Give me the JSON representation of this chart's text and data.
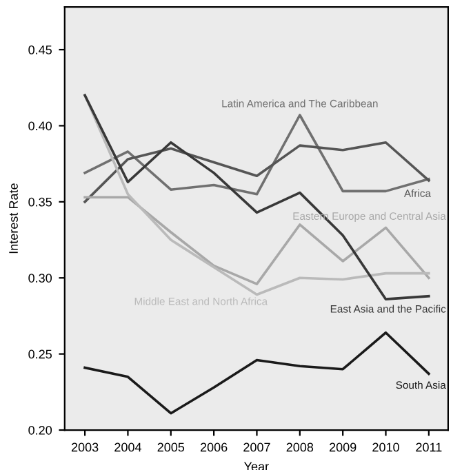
{
  "chart_data": {
    "type": "line",
    "xlabel": "Year",
    "ylabel": "Interest Rate",
    "x": [
      2003,
      2004,
      2005,
      2006,
      2007,
      2008,
      2009,
      2010,
      2011
    ],
    "xlim": [
      2002.53,
      2011.45
    ],
    "xticks": [
      2003,
      2004,
      2005,
      2006,
      2007,
      2008,
      2009,
      2010,
      2011
    ],
    "ylim": [
      0.2,
      0.478
    ],
    "yticks": [
      {
        "value": 0.2,
        "label": "0.20"
      },
      {
        "value": 0.25,
        "label": "0.25"
      },
      {
        "value": 0.3,
        "label": "0.30"
      },
      {
        "value": 0.35,
        "label": "0.35"
      },
      {
        "value": 0.4,
        "label": "0.40"
      },
      {
        "value": 0.45,
        "label": "0.45"
      }
    ],
    "grid": false,
    "legend": false,
    "marker": "none",
    "line_style": "solid",
    "series": [
      {
        "name": "Latin America and The Caribbean",
        "color": "#707070",
        "values": [
          0.369,
          0.383,
          0.358,
          0.361,
          0.355,
          0.407,
          0.357,
          0.357,
          0.365
        ]
      },
      {
        "name": "Africa",
        "color": "#555555",
        "values": [
          0.35,
          0.378,
          0.385,
          0.376,
          0.367,
          0.387,
          0.384,
          0.389,
          0.364
        ]
      },
      {
        "name": "Eastern Europe and Central Asia",
        "color": "#a8a8a8",
        "values": [
          0.353,
          0.353,
          0.33,
          0.308,
          0.296,
          0.335,
          0.311,
          0.333,
          0.3
        ]
      },
      {
        "name": "Middle East and North Africa",
        "color": "#bababa",
        "values": [
          0.42,
          0.355,
          0.325,
          0.307,
          0.289,
          0.3,
          0.299,
          0.303,
          0.303
        ]
      },
      {
        "name": "East Asia and the Pacific",
        "color": "#383838",
        "values": [
          0.42,
          0.363,
          0.389,
          0.369,
          0.343,
          0.356,
          0.328,
          0.286,
          0.288
        ]
      },
      {
        "name": "South Asia",
        "color": "#1a1a1a",
        "values": [
          0.241,
          0.235,
          0.211,
          0.228,
          0.246,
          0.242,
          0.24,
          0.264,
          0.237
        ]
      }
    ]
  }
}
